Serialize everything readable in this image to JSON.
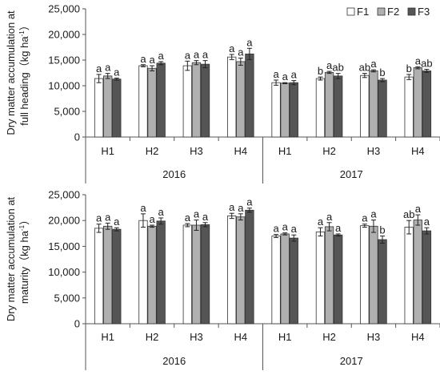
{
  "colors": {
    "F1": "#ffffff",
    "F2": "#b0b0b0",
    "F3": "#555555"
  },
  "chart_data": [
    {
      "type": "bar",
      "ylabel_line1": "Dry matter accumulation at",
      "ylabel_line2": "full heading（kg ha",
      "ylabel_sup": "-1",
      "ylabel_close": "）",
      "ylim": [
        0,
        25000
      ],
      "yticks": [
        "0",
        "5,000",
        "10,000",
        "15,000",
        "20,000",
        "25,000"
      ],
      "ytick_values": [
        0,
        5000,
        10000,
        15000,
        20000,
        25000
      ],
      "categories": [
        "H1",
        "H2",
        "H3",
        "H4",
        "H1",
        "H2",
        "H3",
        "H4"
      ],
      "groups": [
        "2016",
        "2017"
      ],
      "legend": [
        "F1",
        "F2",
        "F3"
      ],
      "legend_position": "top-right",
      "series": [
        {
          "name": "F1",
          "values": [
            11400,
            13900,
            13900,
            15600,
            10600,
            11400,
            12000,
            11700
          ],
          "errors": [
            800,
            200,
            900,
            500,
            500,
            300,
            400,
            500
          ],
          "letters": [
            "a",
            "a",
            "a",
            "a",
            "a",
            "b",
            "ab",
            "b"
          ]
        },
        {
          "name": "F2",
          "values": [
            11900,
            13400,
            14500,
            14700,
            10500,
            12600,
            12900,
            13500
          ],
          "errors": [
            500,
            500,
            400,
            700,
            100,
            200,
            200,
            200
          ],
          "letters": [
            "a",
            "a",
            "a",
            "a",
            "a",
            "a",
            "a",
            "a"
          ]
        },
        {
          "name": "F3",
          "values": [
            11300,
            14400,
            14200,
            16200,
            10600,
            11900,
            11100,
            12900
          ],
          "errors": [
            200,
            300,
            700,
            1100,
            400,
            500,
            300,
            300
          ],
          "letters": [
            "a",
            "a",
            "a",
            "a",
            "a",
            "ab",
            "b",
            "ab"
          ]
        }
      ]
    },
    {
      "type": "bar",
      "ylabel_line1": "Dry matter accumulation at",
      "ylabel_line2": "maturity（kg ha",
      "ylabel_sup": "-1",
      "ylabel_close": "）",
      "ylim": [
        0,
        25000
      ],
      "yticks": [
        "0",
        "5,000",
        "10,000",
        "15,000",
        "20,000",
        "25,000"
      ],
      "ytick_values": [
        0,
        5000,
        10000,
        15000,
        20000,
        25000
      ],
      "categories": [
        "H1",
        "H2",
        "H3",
        "H4",
        "H1",
        "H2",
        "H3",
        "H4"
      ],
      "groups": [
        "2016",
        "2017"
      ],
      "series": [
        {
          "name": "F1",
          "values": [
            18500,
            20000,
            19100,
            20900,
            17000,
            17800,
            19000,
            18700
          ],
          "errors": [
            800,
            1300,
            300,
            500,
            300,
            800,
            300,
            1300
          ],
          "letters": [
            "a",
            "a",
            "a",
            "a",
            "a",
            "a",
            "a",
            "ab"
          ]
        },
        {
          "name": "F2",
          "values": [
            18900,
            18900,
            19100,
            20700,
            17400,
            18800,
            18900,
            20100
          ],
          "errors": [
            600,
            200,
            1000,
            600,
            200,
            800,
            1200,
            1000
          ],
          "letters": [
            "a",
            "a",
            "a",
            "a",
            "a",
            "a",
            "a",
            "a"
          ]
        },
        {
          "name": "F3",
          "values": [
            18300,
            19900,
            19200,
            22000,
            16600,
            17200,
            16300,
            18000
          ],
          "errors": [
            300,
            600,
            400,
            400,
            600,
            200,
            700,
            600
          ],
          "letters": [
            "a",
            "a",
            "a",
            "a",
            "a",
            "a",
            "b",
            "a"
          ]
        }
      ]
    }
  ]
}
